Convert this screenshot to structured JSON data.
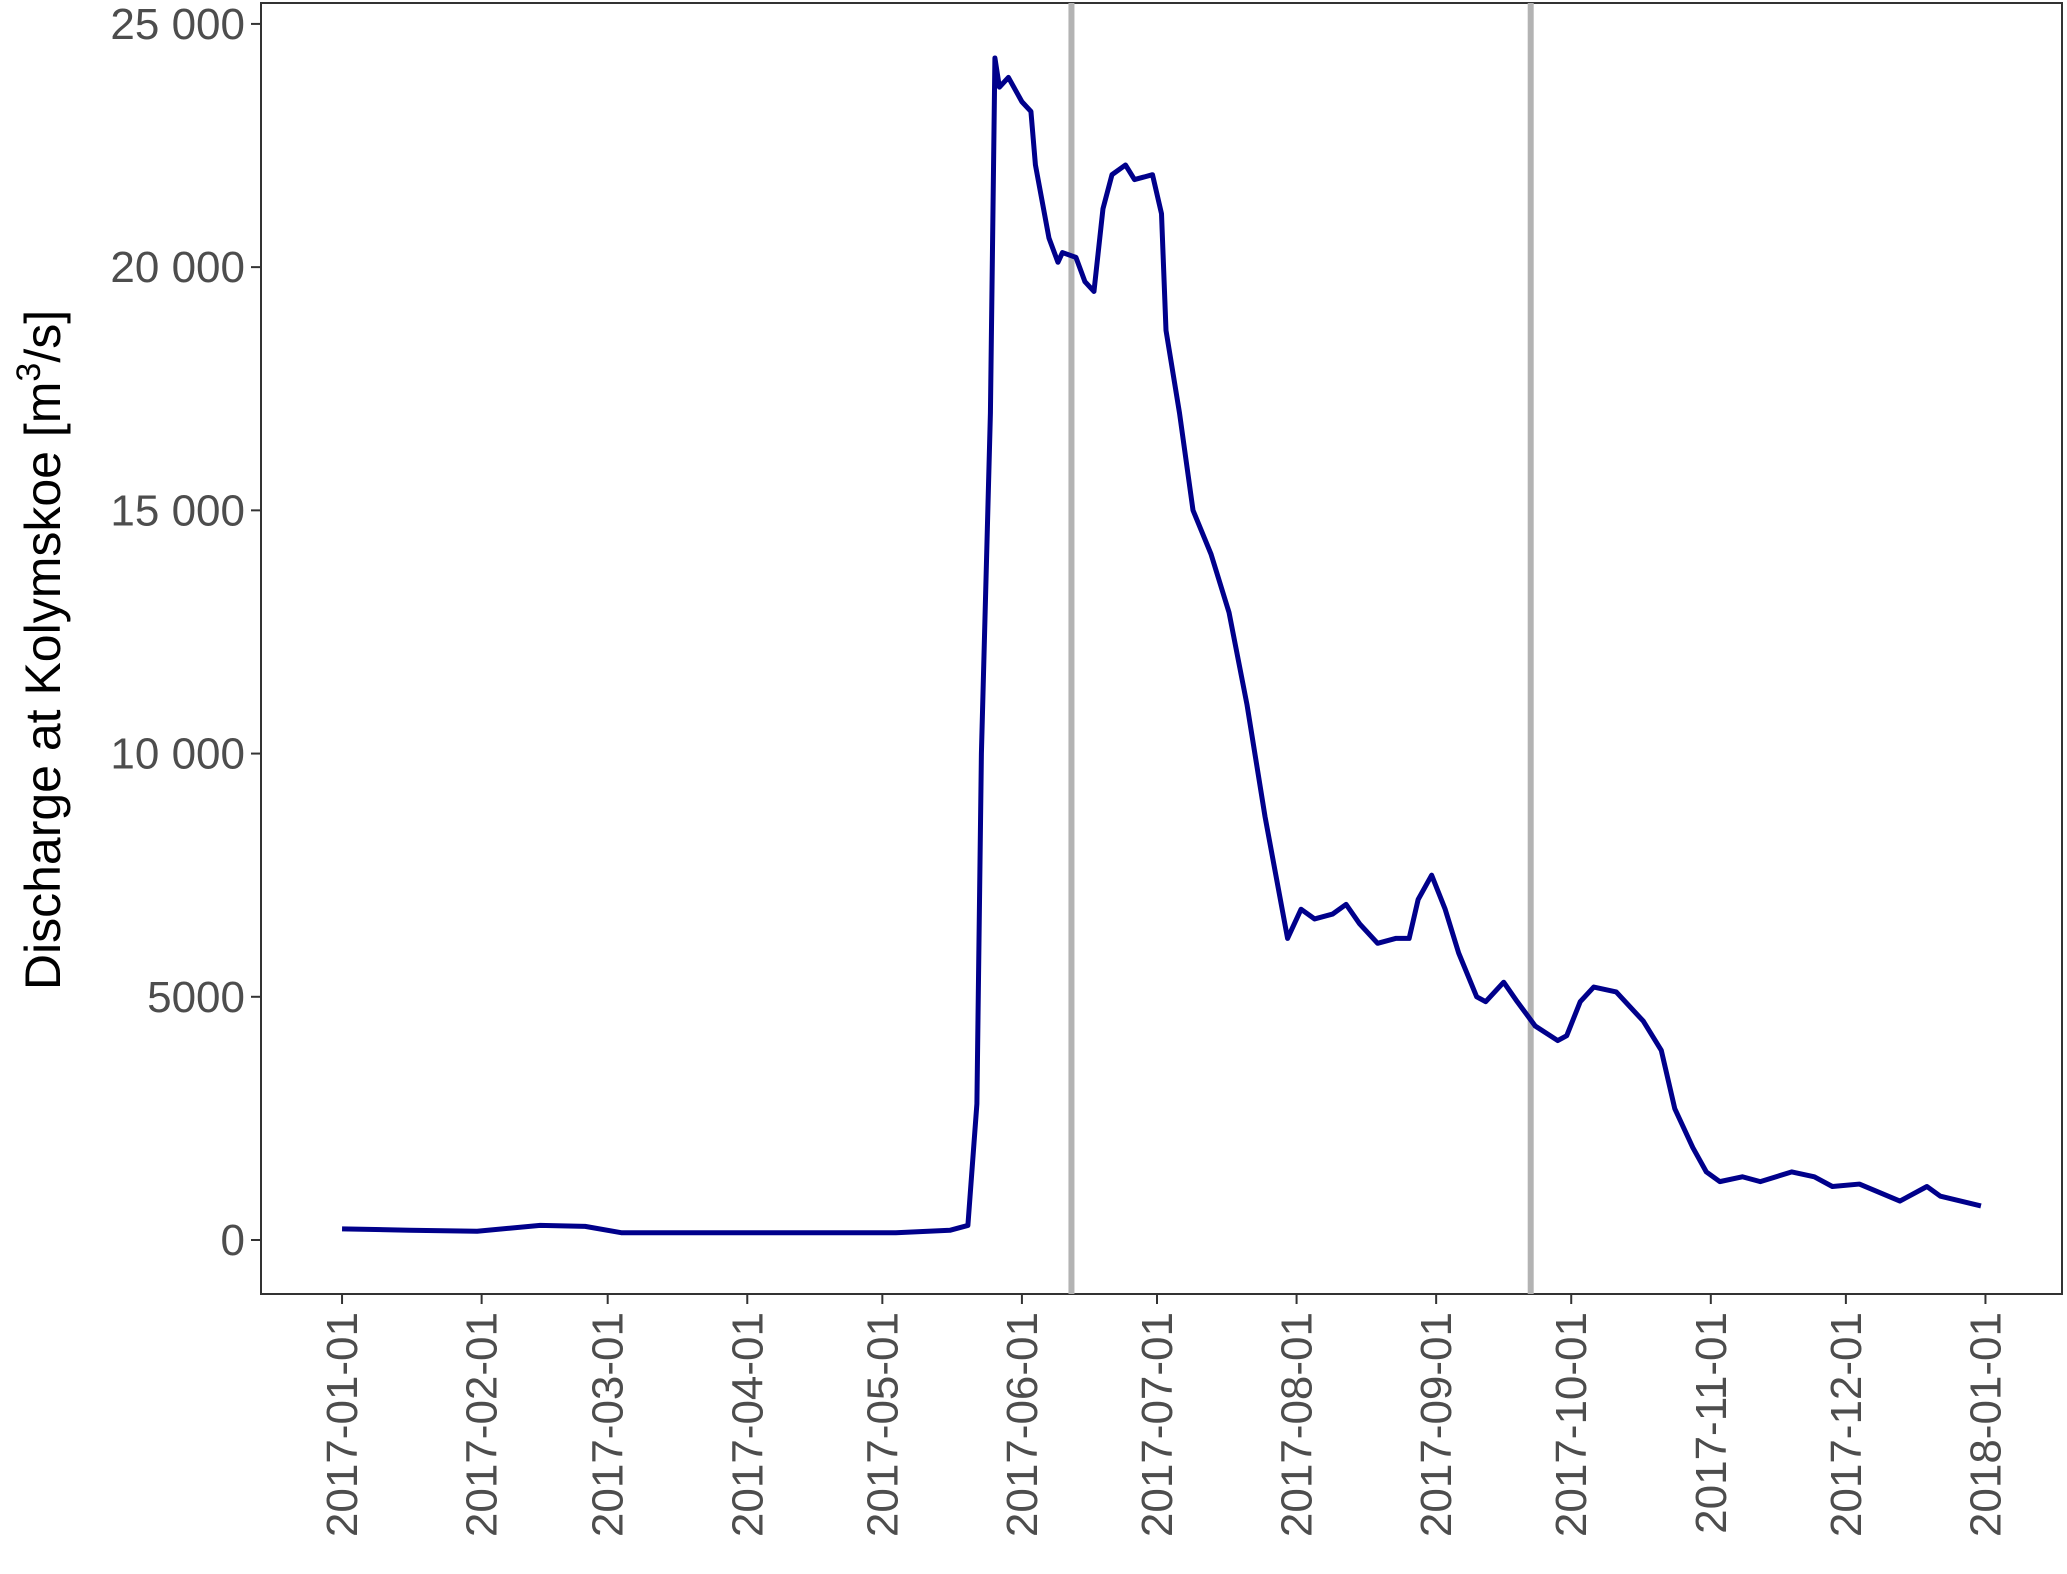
{
  "chart_data": {
    "type": "line",
    "y_label": {
      "text": "Discharge at Kolymskoe [m",
      "sup": "3",
      "end": "/s]"
    },
    "x": [
      "2017-01-01",
      "2017-01-16",
      "2017-01-31",
      "2017-02-14",
      "2017-02-24",
      "2017-03-04",
      "2017-05-04",
      "2017-05-16",
      "2017-05-20",
      "2017-05-22",
      "2017-05-23",
      "2017-05-25",
      "2017-05-26",
      "2017-05-27",
      "2017-05-29",
      "2017-06-01",
      "2017-06-03",
      "2017-06-04",
      "2017-06-07",
      "2017-06-09",
      "2017-06-10",
      "2017-06-13",
      "2017-06-15",
      "2017-06-17",
      "2017-06-19",
      "2017-06-21",
      "2017-06-24",
      "2017-06-26",
      "2017-06-30",
      "2017-07-02",
      "2017-07-03",
      "2017-07-06",
      "2017-07-09",
      "2017-07-13",
      "2017-07-17",
      "2017-07-21",
      "2017-07-25",
      "2017-07-28",
      "2017-07-30",
      "2017-08-02",
      "2017-08-05",
      "2017-08-09",
      "2017-08-12",
      "2017-08-15",
      "2017-08-19",
      "2017-08-23",
      "2017-08-26",
      "2017-08-28",
      "2017-08-31",
      "2017-09-03",
      "2017-09-06",
      "2017-09-10",
      "2017-09-12",
      "2017-09-16",
      "2017-09-19",
      "2017-09-23",
      "2017-09-28",
      "2017-09-30",
      "2017-10-03",
      "2017-10-06",
      "2017-10-11",
      "2017-10-17",
      "2017-10-21",
      "2017-10-24",
      "2017-10-28",
      "2017-10-31",
      "2017-11-03",
      "2017-11-08",
      "2017-11-12",
      "2017-11-19",
      "2017-11-24",
      "2017-11-28",
      "2017-12-04",
      "2017-12-13",
      "2017-12-19",
      "2017-12-22",
      "2017-12-31"
    ],
    "values": [
      230,
      200,
      180,
      300,
      280,
      150,
      150,
      200,
      300,
      2800,
      10000,
      17000,
      24300,
      23700,
      23900,
      23400,
      23200,
      22100,
      20600,
      20100,
      20300,
      20200,
      19700,
      19500,
      21200,
      21900,
      22100,
      21800,
      21900,
      21100,
      18700,
      17000,
      15000,
      14100,
      12900,
      11000,
      8700,
      7200,
      6200,
      6800,
      6600,
      6700,
      6900,
      6500,
      6100,
      6200,
      6200,
      7000,
      7500,
      6800,
      5900,
      5000,
      4900,
      5300,
      4900,
      4400,
      4100,
      4200,
      4900,
      5200,
      5100,
      4500,
      3900,
      2700,
      1900,
      1400,
      1200,
      1300,
      1200,
      1400,
      1300,
      1100,
      1150,
      800,
      1100,
      900,
      700
    ],
    "color": "#00008b",
    "vlines": [
      "2017-06-12",
      "2017-09-22"
    ],
    "vline_color": "#b3b3b3",
    "xlim": [
      "2016-12-14",
      "2018-01-18"
    ],
    "xticks": [
      "2017-01-01",
      "2017-02-01",
      "2017-03-01",
      "2017-04-01",
      "2017-05-01",
      "2017-06-01",
      "2017-07-01",
      "2017-08-01",
      "2017-09-01",
      "2017-10-01",
      "2017-11-01",
      "2017-12-01",
      "2018-01-01"
    ],
    "ylim": [
      -1110,
      25430
    ],
    "yticks": [
      0,
      5000,
      {
        "value": 10000,
        "label": "10 000"
      },
      {
        "value": 15000,
        "label": "15 000"
      },
      {
        "value": 20000,
        "label": "20 000"
      },
      {
        "value": 25000,
        "label": "25 000"
      }
    ],
    "grid": false
  }
}
